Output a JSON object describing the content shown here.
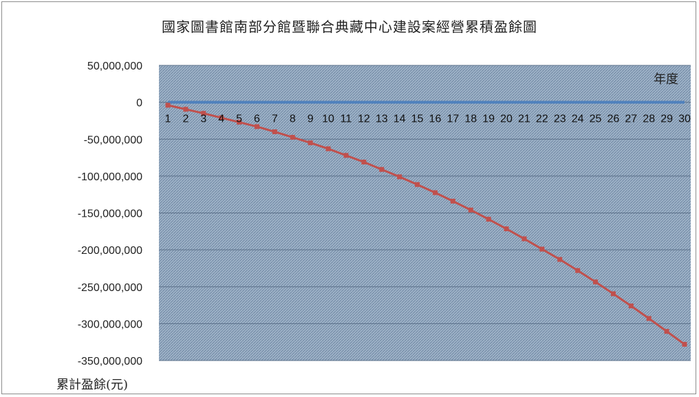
{
  "chart_data": {
    "type": "line",
    "title": "國家圖書館南部分館暨聯合典藏中心建設案經營累積盈餘圖",
    "xlabel": "年度",
    "ylabel": "累計盈餘(元)",
    "ylim": [
      -350000000,
      50000000
    ],
    "y_ticks": [
      50000000,
      0,
      -50000000,
      -100000000,
      -150000000,
      -200000000,
      -250000000,
      -300000000,
      -350000000
    ],
    "y_tick_labels": [
      "50,000,000",
      "0",
      "-50,000,000",
      "-100,000,000",
      "-150,000,000",
      "-200,000,000",
      "-250,000,000",
      "-300,000,000",
      "-350,000,000"
    ],
    "x": [
      1,
      2,
      3,
      4,
      5,
      6,
      7,
      8,
      9,
      10,
      11,
      12,
      13,
      14,
      15,
      16,
      17,
      18,
      19,
      20,
      21,
      22,
      23,
      24,
      25,
      26,
      27,
      28,
      29,
      30
    ],
    "grid": true,
    "series": [
      {
        "color": "#4f81bd",
        "values": [
          0,
          0,
          0,
          0,
          0,
          0,
          0,
          0,
          0,
          0,
          0,
          0,
          0,
          0,
          0,
          0,
          0,
          0,
          0,
          0,
          0,
          0,
          0,
          0,
          0,
          0,
          0,
          0,
          0,
          0
        ]
      },
      {
        "color": "#c0504d",
        "values": [
          -4000000,
          -9500000,
          -15000000,
          -21000000,
          -27000000,
          -33000000,
          -40000000,
          -47500000,
          -55000000,
          -63000000,
          -72000000,
          -81000000,
          -91000000,
          -101000000,
          -111500000,
          -122500000,
          -134000000,
          -146000000,
          -158500000,
          -171500000,
          -185000000,
          -199000000,
          -213000000,
          -228000000,
          -243500000,
          -259500000,
          -276000000,
          -293000000,
          -310500000,
          -328000000
        ]
      }
    ]
  }
}
